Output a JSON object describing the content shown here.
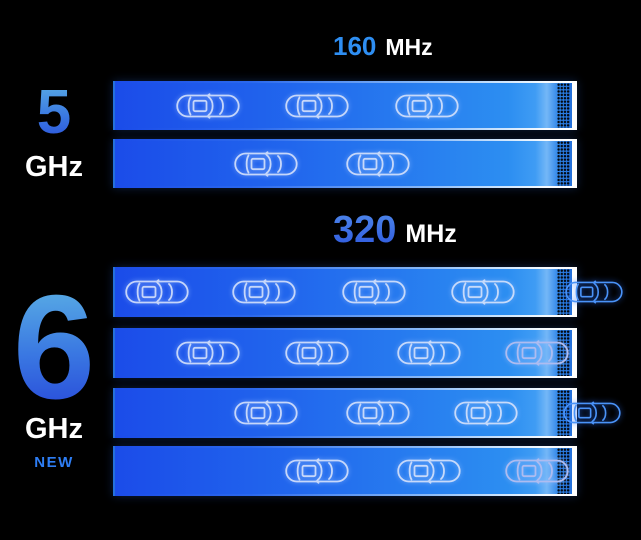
{
  "colors": {
    "background": "#000000",
    "bar_gradient_start": "#1b4ce9",
    "bar_gradient_end": "#2c8ef1",
    "bar_border": "#ffffff",
    "accent_160": "#2e8ef2",
    "accent_320_top": "#4c84ea",
    "accent_320_bottom": "#2e58dd",
    "band_number_gradient_top": "#57a9e4",
    "band_number_gradient_bottom": "#2a4fda",
    "new_badge": "#2e7ef5",
    "unit_text": "#ffffff",
    "car_outline": "#d9e4fc",
    "car_outline_exit": "#4a93f8"
  },
  "icons": {
    "car": "car-top-view-icon"
  },
  "sections": [
    {
      "band_number": "5",
      "band_unit": "GHz",
      "bandwidth_value": "160",
      "bandwidth_unit": "MHz",
      "channel_count": 2,
      "channels": [
        {
          "cars": [
            {
              "pct": 20.3
            },
            {
              "pct": 44.2
            },
            {
              "pct": 68.3
            }
          ]
        },
        {
          "cars": [
            {
              "pct": 33.0
            },
            {
              "pct": 57.5
            }
          ]
        }
      ]
    },
    {
      "band_number": "6",
      "band_unit": "GHz",
      "band_badge": "NEW",
      "bandwidth_value": "320",
      "bandwidth_unit": "MHz",
      "channel_count": 4,
      "channels": [
        {
          "cars": [
            {
              "pct": 9.2
            },
            {
              "pct": 32.6
            },
            {
              "pct": 56.7
            },
            {
              "pct": 80.5
            },
            {
              "pct": 105.5,
              "variant": "exit"
            }
          ]
        },
        {
          "cars": [
            {
              "pct": 20.3
            },
            {
              "pct": 44.2
            },
            {
              "pct": 68.7
            },
            {
              "pct": 92.3,
              "variant": "edge"
            }
          ]
        },
        {
          "cars": [
            {
              "pct": 33.0
            },
            {
              "pct": 57.5
            },
            {
              "pct": 81.2
            },
            {
              "pct": 105.0,
              "variant": "exit"
            }
          ]
        },
        {
          "cars": [
            {
              "pct": 44.2
            },
            {
              "pct": 68.7
            },
            {
              "pct": 92.3,
              "variant": "edge"
            }
          ]
        }
      ]
    }
  ]
}
